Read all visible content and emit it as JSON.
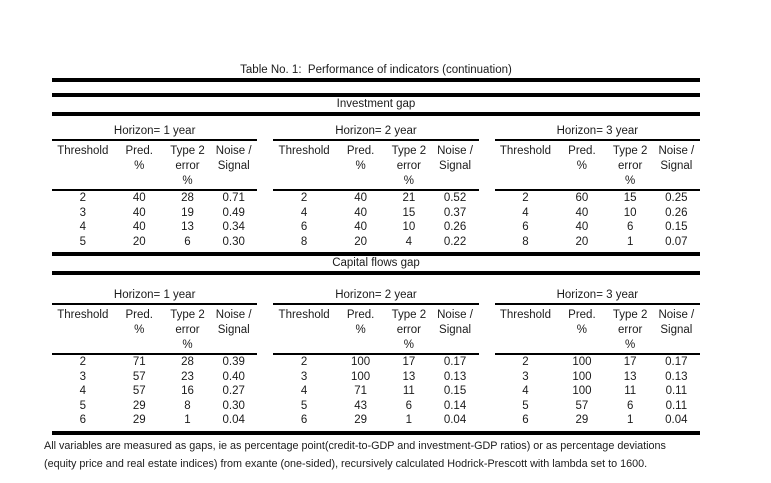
{
  "title": "Table No. 1:  Performance of indicators (continuation)",
  "columns": [
    [
      "Threshold"
    ],
    [
      "Pred.",
      "%"
    ],
    [
      "Type 2",
      "error",
      "%"
    ],
    [
      "Noise /",
      "Signal"
    ]
  ],
  "sections": [
    {
      "label": "Investment gap",
      "horizons": [
        {
          "label": "Horizon= 1 year",
          "rows": [
            [
              "2",
              "40",
              "28",
              "0.71"
            ],
            [
              "3",
              "40",
              "19",
              "0.49"
            ],
            [
              "4",
              "40",
              "13",
              "0.34"
            ],
            [
              "5",
              "20",
              "6",
              "0.30"
            ]
          ]
        },
        {
          "label": "Horizon= 2 year",
          "rows": [
            [
              "2",
              "40",
              "21",
              "0.52"
            ],
            [
              "4",
              "40",
              "15",
              "0.37"
            ],
            [
              "6",
              "40",
              "10",
              "0.26"
            ],
            [
              "8",
              "20",
              "4",
              "0.22"
            ]
          ]
        },
        {
          "label": "Horizon= 3 year",
          "rows": [
            [
              "2",
              "60",
              "15",
              "0.25"
            ],
            [
              "4",
              "40",
              "10",
              "0.26"
            ],
            [
              "6",
              "40",
              "6",
              "0.15"
            ],
            [
              "8",
              "20",
              "1",
              "0.07"
            ]
          ]
        }
      ]
    },
    {
      "label": "Capital flows gap",
      "horizons": [
        {
          "label": "Horizon= 1 year",
          "rows": [
            [
              "2",
              "71",
              "28",
              "0.39"
            ],
            [
              "3",
              "57",
              "23",
              "0.40"
            ],
            [
              "4",
              "57",
              "16",
              "0.27"
            ],
            [
              "5",
              "29",
              "8",
              "0.30"
            ],
            [
              "6",
              "29",
              "1",
              "0.04"
            ]
          ]
        },
        {
          "label": "Horizon= 2 year",
          "rows": [
            [
              "2",
              "100",
              "17",
              "0.17"
            ],
            [
              "3",
              "100",
              "13",
              "0.13"
            ],
            [
              "4",
              "71",
              "11",
              "0.15"
            ],
            [
              "5",
              "43",
              "6",
              "0.14"
            ],
            [
              "6",
              "29",
              "1",
              "0.04"
            ]
          ]
        },
        {
          "label": "Horizon= 3 year",
          "rows": [
            [
              "2",
              "100",
              "17",
              "0.17"
            ],
            [
              "3",
              "100",
              "13",
              "0.13"
            ],
            [
              "4",
              "100",
              "11",
              "0.11"
            ],
            [
              "5",
              "57",
              "6",
              "0.11"
            ],
            [
              "6",
              "29",
              "1",
              "0.04"
            ]
          ]
        }
      ]
    }
  ],
  "footnotes": [
    "All variables are measured as gaps, ie as percentage point(credit-to-GDP and investment-GDP ratios) or as percentage deviations",
    "(equity price and real estate indices) from exante (one-sided), recursively calculated Hodrick-Prescott with lambda set to 1600."
  ],
  "colors": {
    "text": "#1b1b1b",
    "rule": "#000000",
    "background": "#ffffff"
  }
}
